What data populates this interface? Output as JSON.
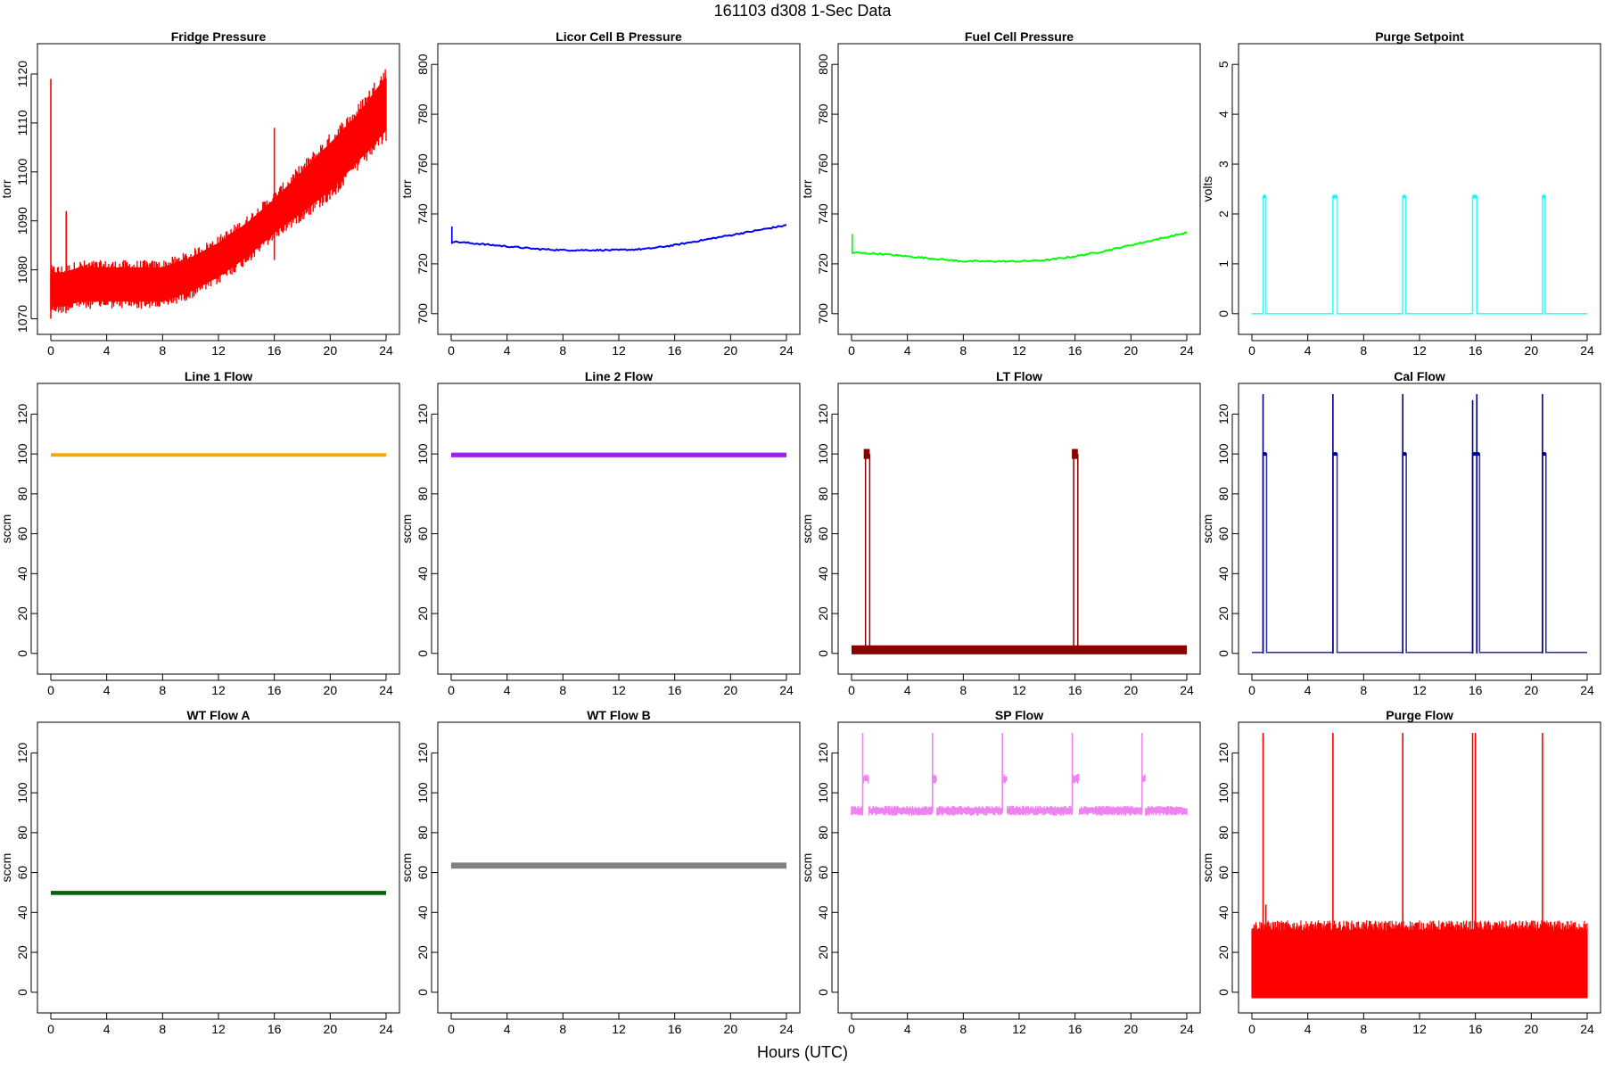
{
  "title": "161103   d308   1-Sec Data",
  "xlabel": "Hours (UTC)",
  "chart_data": [
    {
      "type": "line",
      "title": "Fridge Pressure",
      "ylabel": "torr",
      "xlim": [
        0,
        24
      ],
      "ylim": [
        1069,
        1124
      ],
      "xticks": [
        0,
        4,
        8,
        12,
        16,
        20,
        24
      ],
      "yticks": [
        1070,
        1080,
        1090,
        1100,
        1110,
        1120
      ],
      "color": "#ff0000",
      "style": "noise",
      "x": [
        0,
        0.5,
        1,
        2,
        4,
        6,
        8,
        10,
        12,
        14,
        16,
        18,
        20,
        22,
        24
      ],
      "y": [
        1076,
        1076,
        1076,
        1077,
        1077,
        1077,
        1077,
        1079,
        1082,
        1086,
        1091,
        1096,
        1101,
        1107,
        1114
      ],
      "noise": [
        5,
        5,
        5,
        5,
        5,
        5,
        5,
        5,
        5,
        5,
        5,
        6,
        7,
        7,
        8
      ],
      "spikes": [
        {
          "x": 0,
          "min": 1070,
          "max": 1119
        },
        {
          "x": 1.1,
          "min": 1072,
          "max": 1092
        },
        {
          "x": 16,
          "min": 1082,
          "max": 1109
        }
      ]
    },
    {
      "type": "line",
      "title": "Licor Cell B Pressure",
      "ylabel": "torr",
      "xlim": [
        0,
        24
      ],
      "ylim": [
        696,
        804
      ],
      "xticks": [
        0,
        4,
        8,
        12,
        16,
        20,
        24
      ],
      "yticks": [
        700,
        720,
        740,
        760,
        780,
        800
      ],
      "color": "#0000ff",
      "style": "line",
      "x": [
        0,
        2,
        4,
        6,
        8,
        10,
        12,
        14,
        16,
        18,
        20,
        22,
        24
      ],
      "y": [
        729,
        728,
        727,
        726,
        725.5,
        725.5,
        725.5,
        726,
        727.5,
        729.5,
        731.5,
        733.5,
        735.5
      ],
      "spikes": [
        {
          "x": 0.05,
          "min": 728,
          "max": 735
        }
      ]
    },
    {
      "type": "line",
      "title": "Fuel Cell Pressure",
      "ylabel": "torr",
      "xlim": [
        0,
        24
      ],
      "ylim": [
        696,
        804
      ],
      "xticks": [
        0,
        4,
        8,
        12,
        16,
        20,
        24
      ],
      "yticks": [
        700,
        720,
        740,
        760,
        780,
        800
      ],
      "color": "#00ff00",
      "style": "line",
      "x": [
        0,
        2,
        4,
        6,
        8,
        10,
        12,
        14,
        16,
        18,
        20,
        22,
        24
      ],
      "y": [
        724.5,
        724,
        723,
        722,
        721,
        721,
        721,
        721.5,
        723,
        725,
        727.5,
        730,
        732.5
      ],
      "spikes": [
        {
          "x": 0.05,
          "min": 724,
          "max": 732
        }
      ]
    },
    {
      "type": "line",
      "title": "Purge Setpoint",
      "ylabel": "volts",
      "xlim": [
        0,
        24
      ],
      "ylim": [
        -0.2,
        5.2
      ],
      "xticks": [
        0,
        4,
        8,
        12,
        16,
        20,
        24
      ],
      "yticks": [
        0,
        1,
        2,
        3,
        4,
        5
      ],
      "color": "#00ffff",
      "style": "pulse",
      "baseline": 0,
      "level": 2.35,
      "pulses": [
        [
          0.8,
          1.0
        ],
        [
          5.8,
          6.1
        ],
        [
          10.8,
          11.0
        ],
        [
          15.8,
          16.1
        ],
        [
          20.8,
          21.0
        ]
      ]
    },
    {
      "type": "line",
      "title": "Line 1 Flow",
      "ylabel": "sccm",
      "xlim": [
        0,
        24
      ],
      "ylim": [
        -5,
        130
      ],
      "xticks": [
        0,
        4,
        8,
        12,
        16,
        20,
        24
      ],
      "yticks": [
        0,
        20,
        40,
        60,
        80,
        100,
        120
      ],
      "color": "#ffa500",
      "style": "band",
      "level": 99.5,
      "thickness": 1.2
    },
    {
      "type": "line",
      "title": "Line 2 Flow",
      "ylabel": "sccm",
      "xlim": [
        0,
        24
      ],
      "ylim": [
        -5,
        130
      ],
      "xticks": [
        0,
        4,
        8,
        12,
        16,
        20,
        24
      ],
      "yticks": [
        0,
        20,
        40,
        60,
        80,
        100,
        120
      ],
      "color": "#a020f0",
      "style": "band",
      "level": 99.5,
      "thickness": 1.8
    },
    {
      "type": "line",
      "title": "LT Flow",
      "ylabel": "sccm",
      "xlim": [
        0,
        24
      ],
      "ylim": [
        -5,
        130
      ],
      "xticks": [
        0,
        4,
        8,
        12,
        16,
        20,
        24
      ],
      "yticks": [
        0,
        20,
        40,
        60,
        80,
        100,
        120
      ],
      "color": "#8b0000",
      "style": "lt",
      "baseline": 1.8,
      "thickness": 4.5,
      "level": 100,
      "pulses": [
        [
          1.0,
          1.3
        ],
        [
          15.9,
          16.2
        ]
      ]
    },
    {
      "type": "line",
      "title": "Cal Flow",
      "ylabel": "sccm",
      "xlim": [
        0,
        24
      ],
      "ylim": [
        -5,
        130
      ],
      "xticks": [
        0,
        4,
        8,
        12,
        16,
        20,
        24
      ],
      "yticks": [
        0,
        20,
        40,
        60,
        80,
        100,
        120
      ],
      "color": "#00008b",
      "style": "pulse",
      "baseline": 0.5,
      "level": 100,
      "pulses": [
        [
          0.8,
          1.05
        ],
        [
          5.8,
          6.1
        ],
        [
          10.8,
          11.05
        ],
        [
          15.8,
          16.1
        ],
        [
          16.1,
          16.3
        ],
        [
          20.8,
          21.05
        ]
      ],
      "spikes": [
        {
          "x": 0.8,
          "min": 0,
          "max": 130
        },
        {
          "x": 5.8,
          "min": 0,
          "max": 130
        },
        {
          "x": 10.8,
          "min": 0,
          "max": 130
        },
        {
          "x": 15.8,
          "min": 0,
          "max": 127
        },
        {
          "x": 16.1,
          "min": 0,
          "max": 130
        },
        {
          "x": 20.8,
          "min": 0,
          "max": 130
        }
      ]
    },
    {
      "type": "line",
      "title": "WT Flow A",
      "ylabel": "sccm",
      "xlim": [
        0,
        24
      ],
      "ylim": [
        -5,
        130
      ],
      "xticks": [
        0,
        4,
        8,
        12,
        16,
        20,
        24
      ],
      "yticks": [
        0,
        20,
        40,
        60,
        80,
        100,
        120
      ],
      "color": "#006400",
      "style": "band",
      "level": 49.8,
      "thickness": 1.5
    },
    {
      "type": "line",
      "title": "WT Flow B",
      "ylabel": "sccm",
      "xlim": [
        0,
        24
      ],
      "ylim": [
        -5,
        130
      ],
      "xticks": [
        0,
        4,
        8,
        12,
        16,
        20,
        24
      ],
      "yticks": [
        0,
        20,
        40,
        60,
        80,
        100,
        120
      ],
      "color": "#808080",
      "style": "band",
      "level": 63.5,
      "thickness": 2.5
    },
    {
      "type": "line",
      "title": "SP Flow",
      "ylabel": "sccm",
      "xlim": [
        0,
        24
      ],
      "ylim": [
        -5,
        130
      ],
      "xticks": [
        0,
        4,
        8,
        12,
        16,
        20,
        24
      ],
      "yticks": [
        0,
        20,
        40,
        60,
        80,
        100,
        120
      ],
      "color": "#ee82ee",
      "style": "sp",
      "baseline": 91,
      "thickness": 5,
      "level": 107,
      "pulses": [
        [
          0.8,
          1.2
        ],
        [
          5.8,
          6.1
        ],
        [
          10.8,
          11.1
        ],
        [
          15.8,
          16.3
        ],
        [
          20.8,
          21.0
        ]
      ],
      "spikes": [
        {
          "x": 0.8,
          "min": 90,
          "max": 130
        },
        {
          "x": 5.8,
          "min": 90,
          "max": 130
        },
        {
          "x": 10.8,
          "min": 90,
          "max": 130
        },
        {
          "x": 15.8,
          "min": 90,
          "max": 130
        },
        {
          "x": 20.8,
          "min": 90,
          "max": 130
        }
      ]
    },
    {
      "type": "line",
      "title": "Purge Flow",
      "ylabel": "sccm",
      "xlim": [
        0,
        24
      ],
      "ylim": [
        -5,
        130
      ],
      "xticks": [
        0,
        4,
        8,
        12,
        16,
        20,
        24
      ],
      "yticks": [
        0,
        20,
        40,
        60,
        80,
        100,
        120
      ],
      "color": "#ff0000",
      "style": "purge",
      "baseline": -3,
      "level": 31,
      "top": 36,
      "spikes": [
        {
          "x": 0.8,
          "min": -3,
          "max": 130
        },
        {
          "x": 1.0,
          "min": -3,
          "max": 44
        },
        {
          "x": 5.8,
          "min": -3,
          "max": 130
        },
        {
          "x": 10.8,
          "min": -3,
          "max": 130
        },
        {
          "x": 15.8,
          "min": -3,
          "max": 130
        },
        {
          "x": 16.0,
          "min": -3,
          "max": 130
        },
        {
          "x": 20.8,
          "min": -3,
          "max": 130
        }
      ]
    }
  ]
}
